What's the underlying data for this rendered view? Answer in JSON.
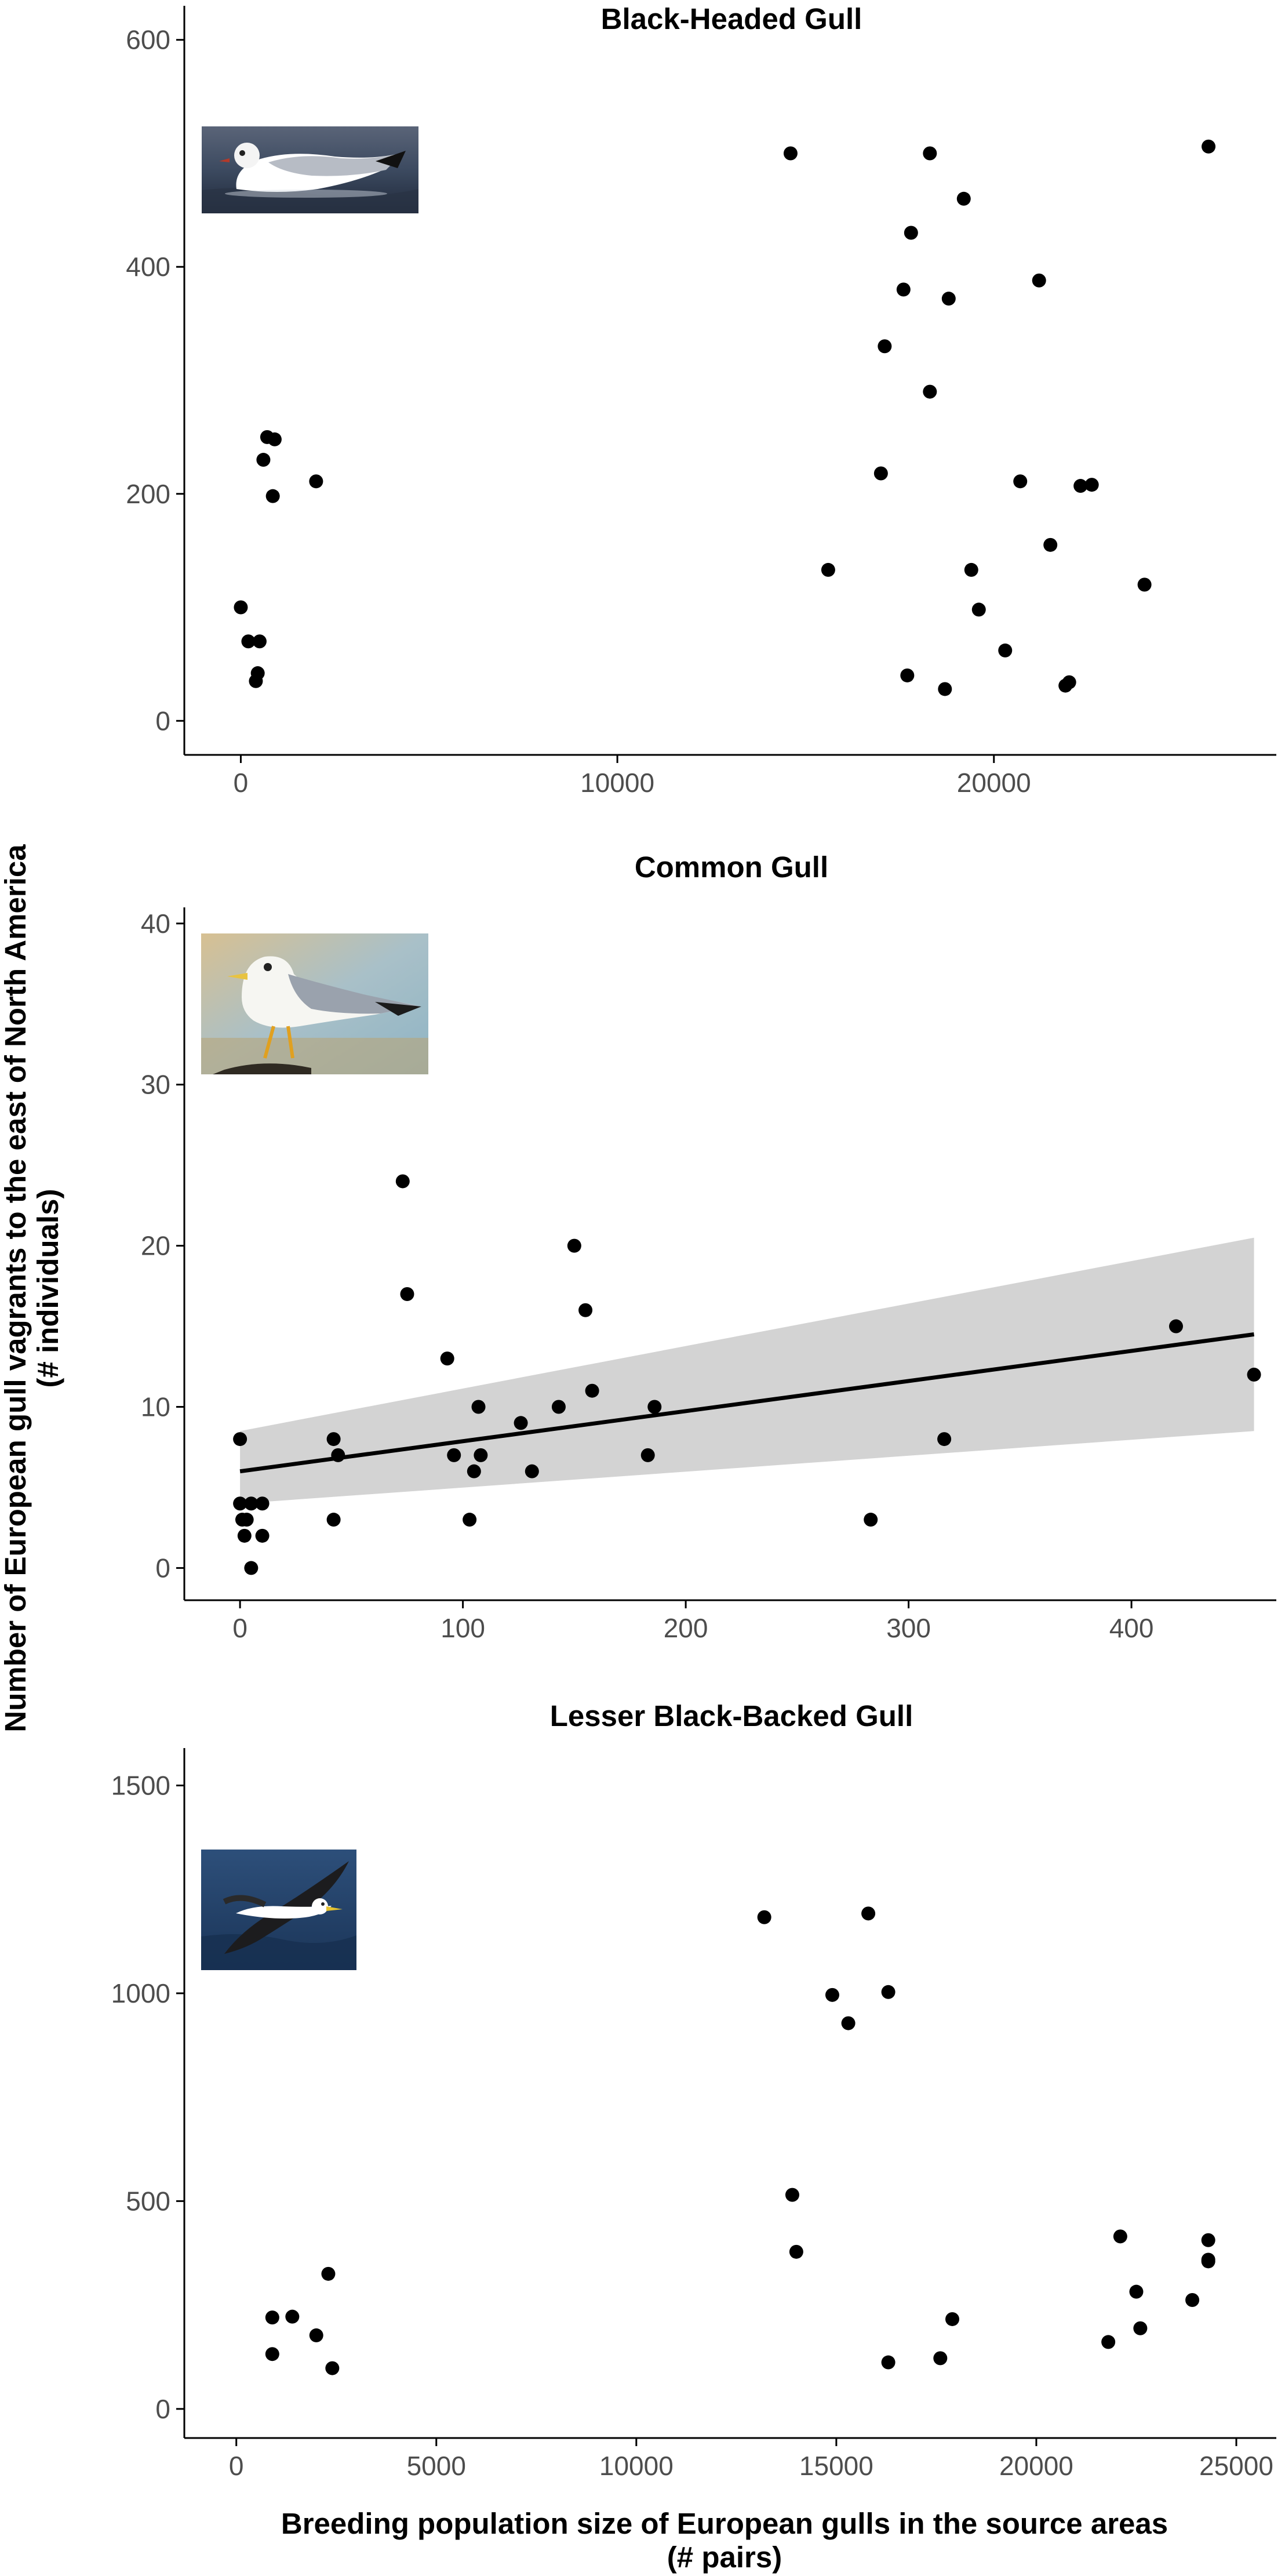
{
  "figure": {
    "ylabel_line1": "Number of European gull vagrants to the east of North America",
    "ylabel_line2": "(# individuals)",
    "xlabel_line1": "Breeding population size of European gulls in the source areas",
    "xlabel_line2": "(# pairs)"
  },
  "chart_data": [
    {
      "type": "scatter",
      "title": "Black-Headed Gull",
      "image": "black-headed-gull-photo",
      "xlim": [
        -1500,
        27500
      ],
      "ylim": [
        -30,
        630
      ],
      "x_ticks": [
        0,
        10000,
        20000
      ],
      "y_ticks": [
        0,
        200,
        400,
        600
      ],
      "x": [
        0,
        200,
        400,
        450,
        500,
        600,
        700,
        850,
        900,
        2000,
        14600,
        15600,
        17000,
        17100,
        17600,
        17700,
        17800,
        18300,
        18300,
        18700,
        18800,
        19200,
        19400,
        19600,
        20300,
        20700,
        21200,
        21500,
        21900,
        22000,
        22300,
        22600,
        24000,
        25700
      ],
      "y": [
        100,
        70,
        35,
        42,
        70,
        230,
        250,
        198,
        248,
        211,
        500,
        133,
        218,
        330,
        380,
        40,
        430,
        290,
        500,
        28,
        372,
        460,
        133,
        98,
        62,
        211,
        388,
        155,
        31,
        34,
        207,
        208,
        120,
        506
      ],
      "regression": null
    },
    {
      "type": "scatter",
      "title": "Common Gull",
      "image": "common-gull-photo",
      "xlim": [
        -25,
        465
      ],
      "ylim": [
        -2,
        41
      ],
      "x_ticks": [
        0,
        100,
        200,
        300,
        400
      ],
      "y_ticks": [
        0,
        10,
        20,
        30,
        40
      ],
      "x": [
        0,
        0,
        1,
        2,
        3,
        5,
        5,
        10,
        10,
        42,
        42,
        44,
        73,
        75,
        93,
        96,
        103,
        105,
        107,
        108,
        126,
        131,
        143,
        150,
        155,
        158,
        183,
        186,
        283,
        316,
        420,
        455
      ],
      "y": [
        8,
        4,
        3,
        2,
        3,
        4,
        0,
        4,
        2,
        3,
        8,
        7,
        24,
        17,
        13,
        7,
        3,
        6,
        10,
        7,
        9,
        6,
        10,
        20,
        16,
        11,
        7,
        10,
        3,
        8,
        15,
        12
      ],
      "regression": {
        "x": [
          0,
          455
        ],
        "y": [
          6.0,
          14.5
        ],
        "ci_lower": [
          4.0,
          8.5
        ],
        "ci_upper": [
          8.5,
          20.5
        ]
      }
    },
    {
      "type": "scatter",
      "title": "Lesser Black-Backed Gull",
      "image": "lesser-black-backed-gull-photo",
      "xlim": [
        -1300,
        26000
      ],
      "ylim": [
        -70,
        1590
      ],
      "x_ticks": [
        0,
        5000,
        10000,
        15000,
        20000,
        25000
      ],
      "y_ticks": [
        0,
        500,
        1000,
        1500
      ],
      "x": [
        900,
        900,
        1400,
        2000,
        2300,
        2400,
        13200,
        13900,
        14000,
        14900,
        15300,
        15800,
        16300,
        16300,
        17600,
        17900,
        21800,
        22100,
        22500,
        22600,
        23900,
        24300,
        24300,
        24300
      ],
      "y": [
        220,
        132,
        222,
        177,
        325,
        98,
        1183,
        515,
        378,
        996,
        928,
        1192,
        1003,
        112,
        122,
        216,
        161,
        415,
        282,
        194,
        262,
        406,
        355,
        359
      ],
      "regression": null
    }
  ]
}
